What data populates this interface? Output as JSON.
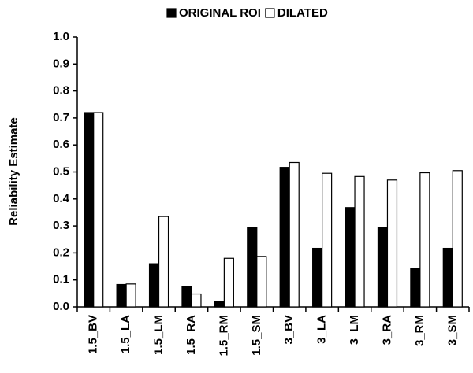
{
  "chart_data": {
    "type": "bar",
    "y_label": "Reliability Estimate",
    "categories": [
      "1.5_BV",
      "1.5_LA",
      "1.5_LM",
      "1.5_RA",
      "1.5_RM",
      "1.5_SM",
      "3_BV",
      "3_LA",
      "3_LM",
      "3_RA",
      "3_RM",
      "3_SM"
    ],
    "series": [
      {
        "name": "ORIGINAL ROI",
        "color": "#000000",
        "values": [
          0.72,
          0.083,
          0.16,
          0.075,
          0.02,
          0.295,
          0.517,
          0.217,
          0.368,
          0.293,
          0.142,
          0.217
        ]
      },
      {
        "name": "DILATED",
        "color": "#ffffff",
        "values": [
          0.72,
          0.085,
          0.335,
          0.048,
          0.18,
          0.187,
          0.535,
          0.495,
          0.483,
          0.47,
          0.497,
          0.505
        ]
      }
    ],
    "ylim": [
      0,
      1
    ],
    "yticks": [
      {
        "value": 0,
        "label": "0.0"
      },
      0.1,
      0.2,
      0.3,
      0.4,
      0.5,
      0.6,
      0.7,
      0.8,
      0.9,
      {
        "value": 1,
        "label": "1.0"
      }
    ],
    "legend": "top",
    "grid": false
  }
}
